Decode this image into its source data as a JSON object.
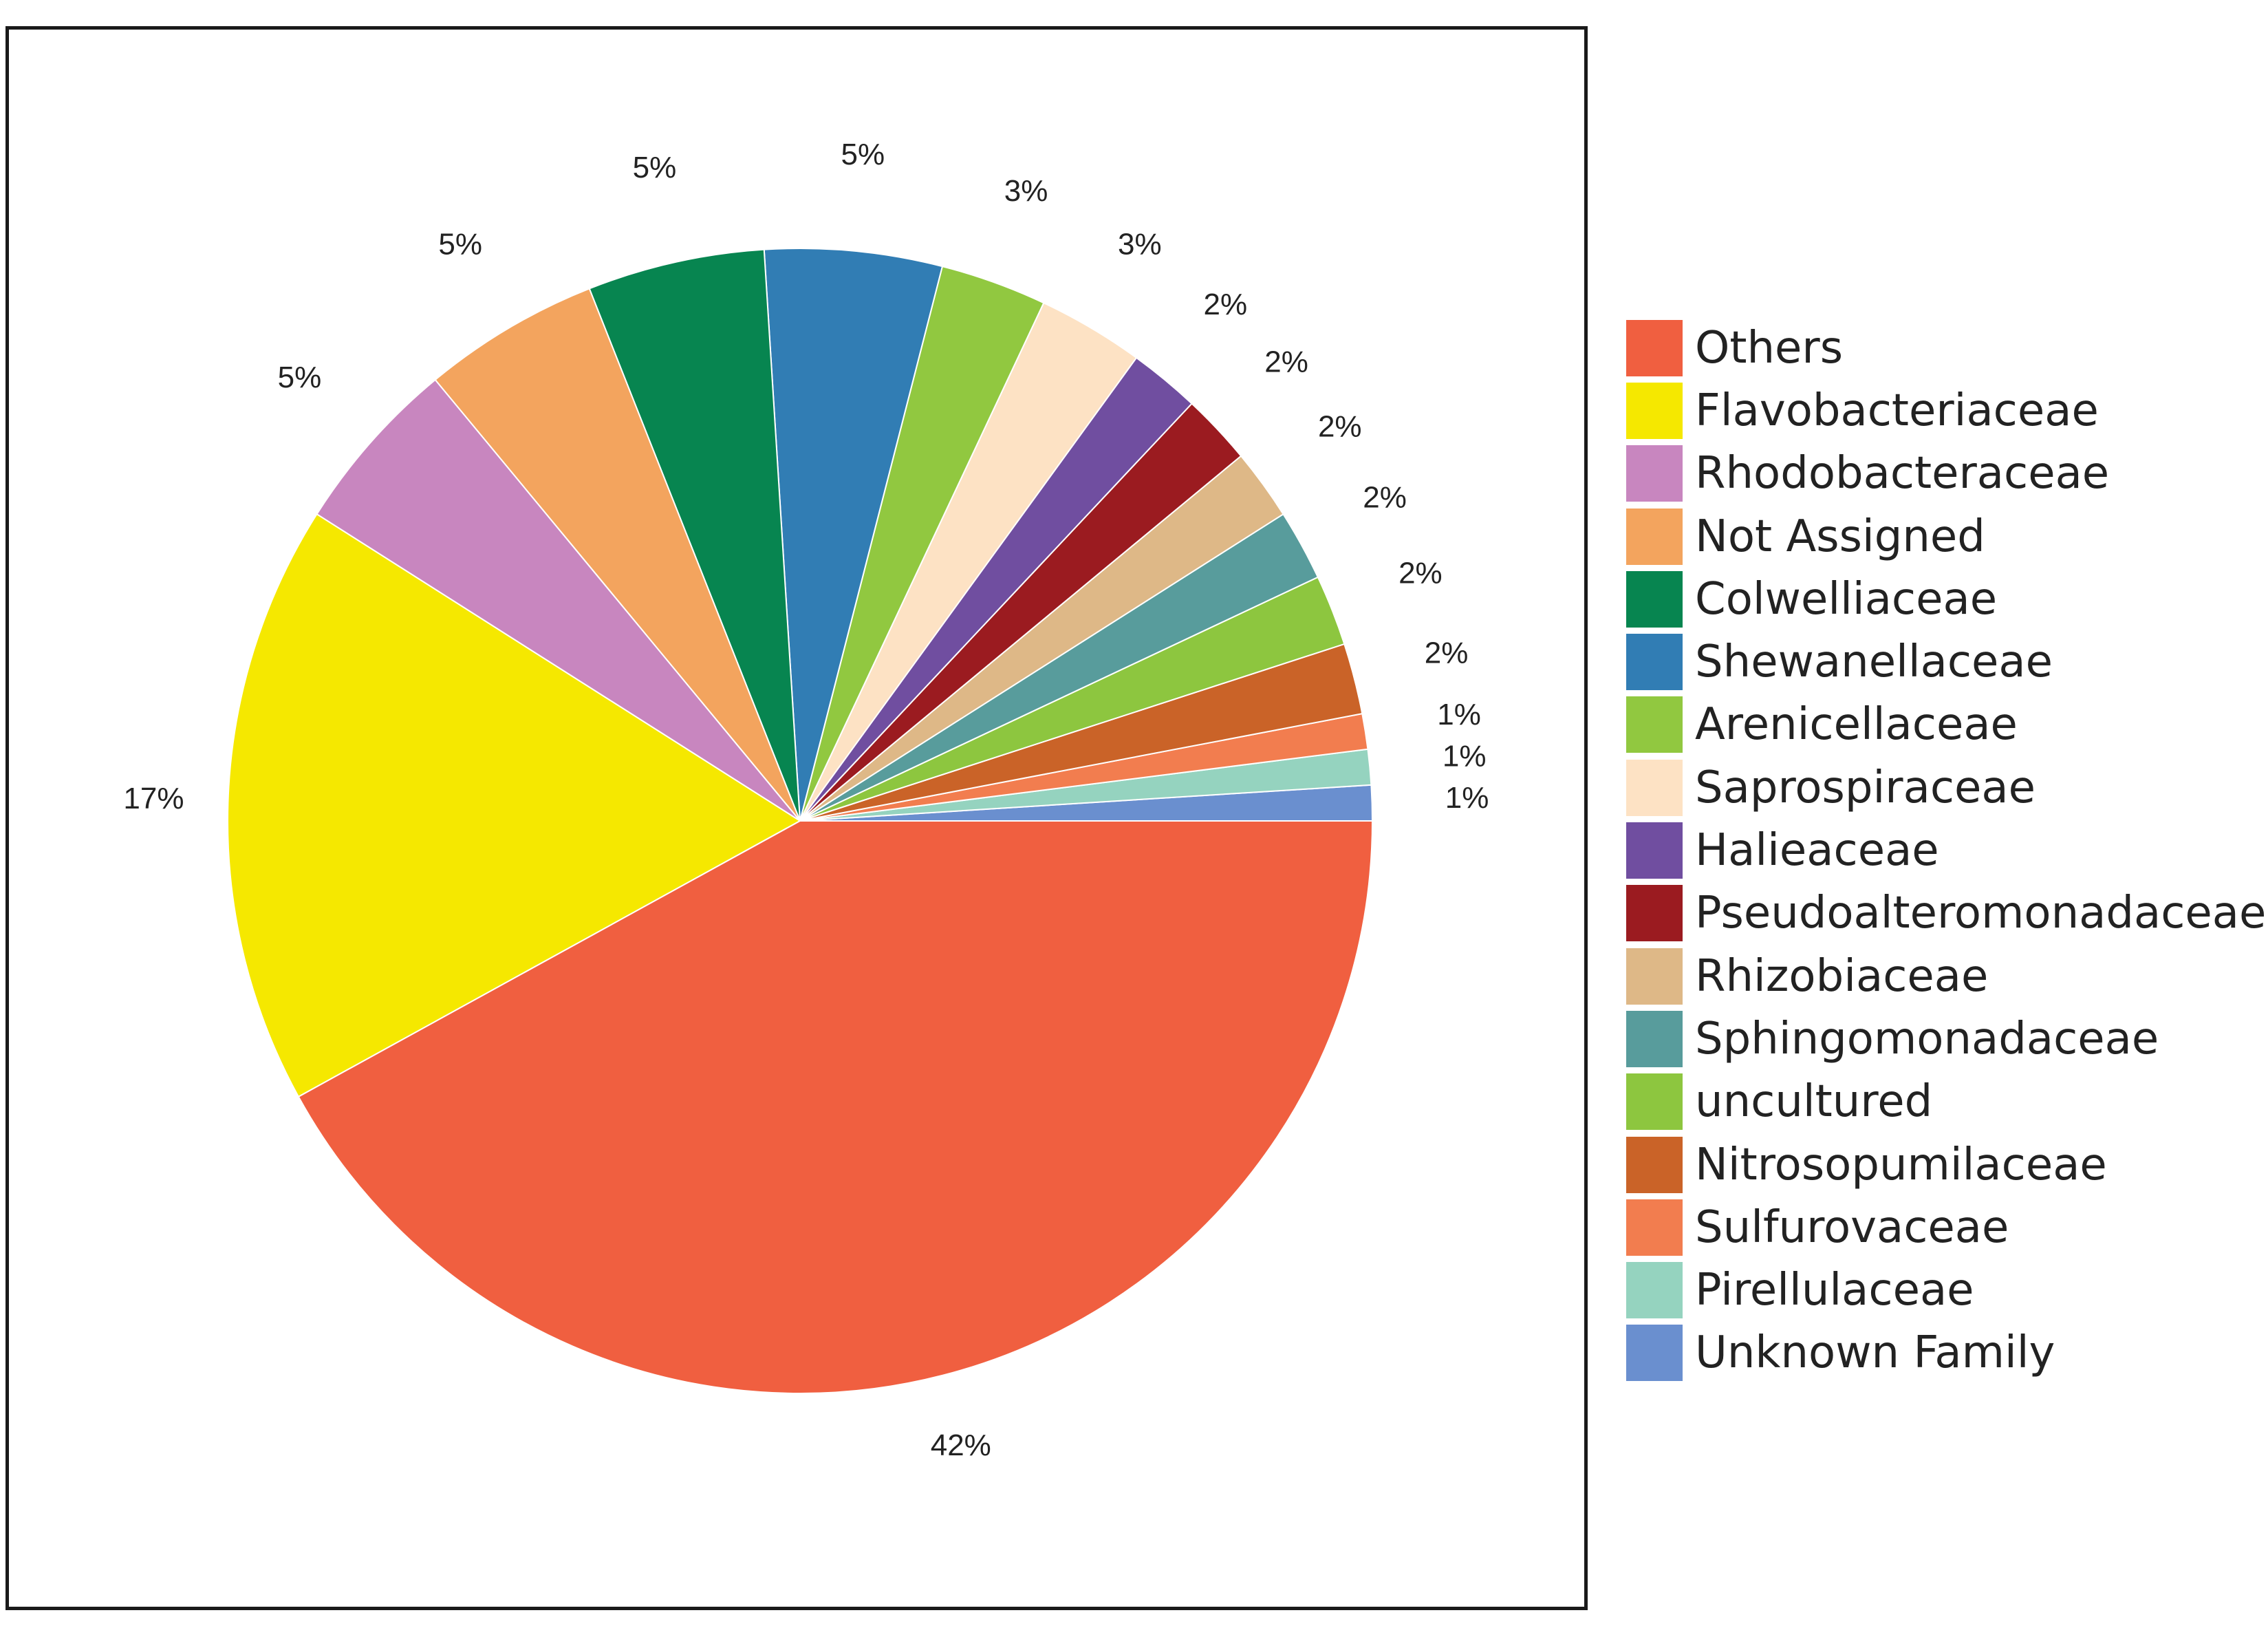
{
  "chart_data": {
    "type": "pie",
    "start_angle": "3 o'clock, counterclockwise",
    "slices": [
      {
        "label": "Unknown Family",
        "value": 1,
        "display": "1%",
        "color": "#6a8fcf"
      },
      {
        "label": "Pirellulaceae",
        "value": 1,
        "display": "1%",
        "color": "#95d3bf"
      },
      {
        "label": "Sulfurovaceae",
        "value": 1,
        "display": "1%",
        "color": "#f27d4f"
      },
      {
        "label": "Nitrosopumilaceae",
        "value": 2,
        "display": "2%",
        "color": "#ca6328"
      },
      {
        "label": "uncultured",
        "value": 2,
        "display": "2%",
        "color": "#8dc63f"
      },
      {
        "label": "Sphingomonadaceae",
        "value": 2,
        "display": "2%",
        "color": "#589c9c"
      },
      {
        "label": "Rhizobiaceae",
        "value": 2,
        "display": "2%",
        "color": "#deb887"
      },
      {
        "label": "Pseudoalteromonadaceae",
        "value": 2,
        "display": "2%",
        "color": "#9b1b20"
      },
      {
        "label": "Halieaceae",
        "value": 2,
        "display": "2%",
        "color": "#704ea0"
      },
      {
        "label": "Saprospiraceae",
        "value": 3,
        "display": "3%",
        "color": "#fde2c4"
      },
      {
        "label": "Arenicellaceae",
        "value": 3,
        "display": "3%",
        "color": "#91c840"
      },
      {
        "label": "Shewanellaceae",
        "value": 5,
        "display": "5%",
        "color": "#317db4"
      },
      {
        "label": "Colwelliaceae",
        "value": 5,
        "display": "5%",
        "color": "#078550"
      },
      {
        "label": "Not Assigned",
        "value": 5,
        "display": "5%",
        "color": "#f3a45e"
      },
      {
        "label": "Rhodobacteraceae",
        "value": 5,
        "display": "5%",
        "color": "#c886bf"
      },
      {
        "label": "Flavobacteriaceae",
        "value": 17,
        "display": "17%",
        "color": "#f5e800"
      },
      {
        "label": "Others",
        "value": 42,
        "display": "42%",
        "color": "#f05f40"
      }
    ],
    "legend": {
      "placement": "right",
      "entries": [
        {
          "label": "Others",
          "color": "#f05f40"
        },
        {
          "label": "Flavobacteriaceae",
          "color": "#f5e800"
        },
        {
          "label": "Rhodobacteraceae",
          "color": "#c886bf"
        },
        {
          "label": "Not Assigned",
          "color": "#f3a45e"
        },
        {
          "label": "Colwelliaceae",
          "color": "#078550"
        },
        {
          "label": "Shewanellaceae",
          "color": "#317db4"
        },
        {
          "label": "Arenicellaceae",
          "color": "#91c840"
        },
        {
          "label": "Saprospiraceae",
          "color": "#fde2c4"
        },
        {
          "label": "Halieaceae",
          "color": "#704ea0"
        },
        {
          "label": "Pseudoalteromonadaceae",
          "color": "#9b1b20"
        },
        {
          "label": "Rhizobiaceae",
          "color": "#deb887"
        },
        {
          "label": "Sphingomonadaceae",
          "color": "#589c9c"
        },
        {
          "label": "uncultured",
          "color": "#8dc63f"
        },
        {
          "label": "Nitrosopumilaceae",
          "color": "#ca6328"
        },
        {
          "label": "Sulfurovaceae",
          "color": "#f27d4f"
        },
        {
          "label": "Pirellulaceae",
          "color": "#95d3bf"
        },
        {
          "label": "Unknown Family",
          "color": "#6a8fcf"
        }
      ]
    }
  }
}
